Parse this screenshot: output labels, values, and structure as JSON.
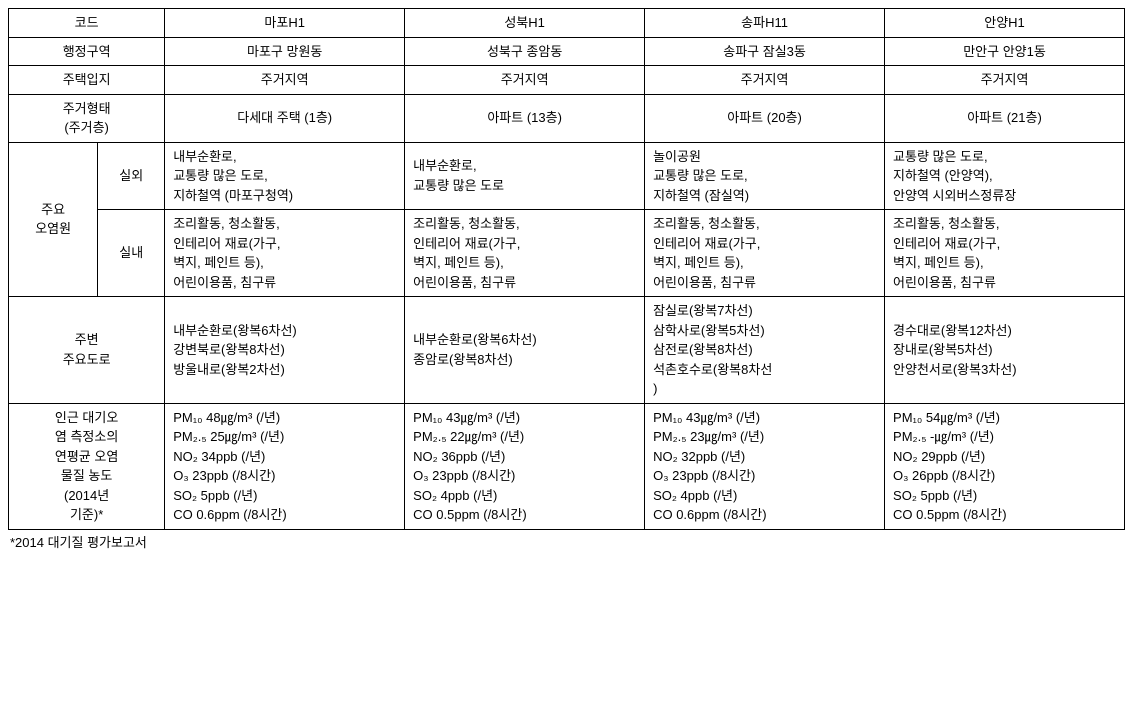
{
  "headers": {
    "code": "코드",
    "admin_region": "행정구역",
    "housing_location": "주택입지",
    "housing_type": "주거형태\n(주거층)",
    "pollution_source": "주요\n오염원",
    "outdoor": "실외",
    "indoor": "실내",
    "nearby_roads": "주변\n주요도로",
    "measurement": "인근 대기오\n염 측정소의\n연평균 오염\n물질 농도\n(2014년\n기준)*"
  },
  "columns": {
    "mapo": {
      "code": "마포H1",
      "admin_region": "마포구 망원동",
      "housing_location": "주거지역",
      "housing_type": "다세대 주택 (1층)",
      "outdoor": "내부순환로,\n교통량 많은 도로,\n지하철역 (마포구청역)",
      "indoor": "조리활동, 청소활동,\n인테리어 재료(가구,\n벽지, 페인트 등),\n어린이용품, 침구류",
      "nearby_roads": "내부순환로(왕복6차선)\n강변북로(왕복8차선)\n방울내로(왕복2차선)",
      "pm10": "PM₁₀ 48㎍/m³ (/년)",
      "pm25": "PM₂.₅ 25㎍/m³ (/년)",
      "no2": "NO₂ 34ppb (/년)",
      "o3": "O₃ 23ppb (/8시간)",
      "so2": "SO₂ 5ppb (/년)",
      "co": "CO 0.6ppm (/8시간)"
    },
    "seongbuk": {
      "code": "성북H1",
      "admin_region": "성북구 종암동",
      "housing_location": "주거지역",
      "housing_type": "아파트 (13층)",
      "outdoor": "내부순환로,\n교통량 많은 도로",
      "indoor": "조리활동, 청소활동,\n인테리어 재료(가구,\n벽지, 페인트 등),\n어린이용품, 침구류",
      "nearby_roads": "내부순환로(왕복6차선)\n종암로(왕복8차선)",
      "pm10": "PM₁₀ 43㎍/m³ (/년)",
      "pm25": "PM₂.₅ 22㎍/m³ (/년)",
      "no2": "NO₂ 36ppb (/년)",
      "o3": "O₃ 23ppb (/8시간)",
      "so2": "SO₂ 4ppb (/년)",
      "co": "CO 0.5ppm (/8시간)"
    },
    "songpa": {
      "code": "송파H11",
      "admin_region": "송파구 잠실3동",
      "housing_location": "주거지역",
      "housing_type": "아파트 (20층)",
      "outdoor": "놀이공원\n교통량 많은 도로,\n지하철역 (잠실역)",
      "indoor": "조리활동, 청소활동,\n인테리어 재료(가구,\n벽지, 페인트 등),\n어린이용품, 침구류",
      "nearby_roads": "잠실로(왕복7차선)\n삼학사로(왕복5차선)\n삼전로(왕복8차선)\n석촌호수로(왕복8차선\n)",
      "pm10": "PM₁₀ 43㎍/m³ (/년)",
      "pm25": "PM₂.₅ 23㎍/m³ (/년)",
      "no2": "NO₂ 32ppb (/년)",
      "o3": "O₃ 23ppb (/8시간)",
      "so2": "SO₂ 4ppb (/년)",
      "co": "CO 0.6ppm (/8시간)"
    },
    "anyang": {
      "code": "안양H1",
      "admin_region": "만안구 안양1동",
      "housing_location": "주거지역",
      "housing_type": "아파트 (21층)",
      "outdoor": "교통량 많은 도로,\n지하철역 (안양역),\n안양역 시외버스정류장",
      "indoor": "조리활동, 청소활동,\n인테리어 재료(가구,\n벽지, 페인트 등),\n어린이용품, 침구류",
      "nearby_roads": "경수대로(왕복12차선)\n장내로(왕복5차선)\n안양천서로(왕복3차선)",
      "pm10": "PM₁₀ 54㎍/m³ (/년)",
      "pm25": "PM₂.₅ -㎍/m³ (/년)",
      "no2": "NO₂ 29ppb (/년)",
      "o3": "O₃ 26ppb (/8시간)",
      "so2": "SO₂ 5ppb (/년)",
      "co": "CO 0.5ppm (/8시간)"
    }
  },
  "footnote": "*2014 대기질 평가보고서"
}
